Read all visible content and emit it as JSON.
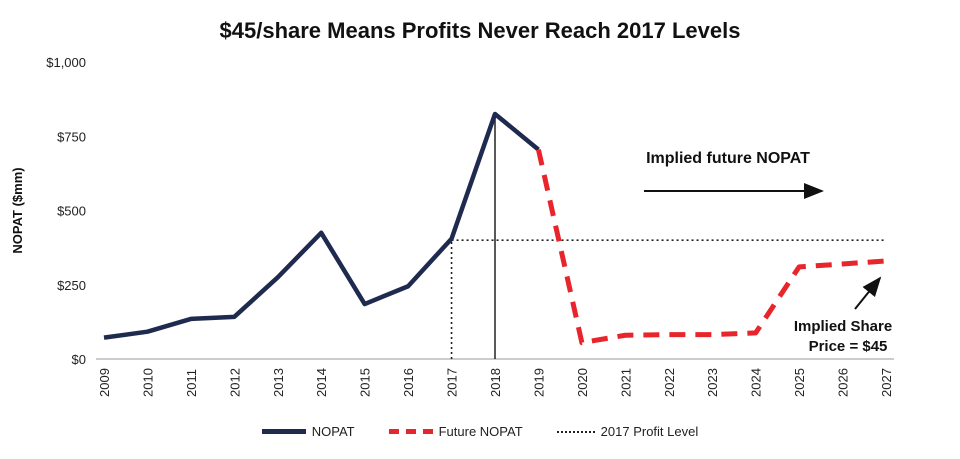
{
  "chart_data": {
    "type": "line",
    "title": "$45/share Means Profits Never Reach 2017 Levels",
    "ylabel": "NOPAT ($mm)",
    "xlabel": "",
    "ylim": [
      0,
      1000
    ],
    "y_ticks": [
      "$0",
      "$250",
      "$500",
      "$750",
      "$1,000"
    ],
    "y_tick_values": [
      0,
      250,
      500,
      750,
      1000
    ],
    "categories": [
      "2009",
      "2010",
      "2011",
      "2012",
      "2013",
      "2014",
      "2015",
      "2016",
      "2017",
      "2018",
      "2019",
      "2020",
      "2021",
      "2022",
      "2023",
      "2024",
      "2025",
      "2026",
      "2027"
    ],
    "series": [
      {
        "name": "NOPAT",
        "color": "#1f2a4f",
        "style": "solid",
        "x": [
          "2009",
          "2010",
          "2011",
          "2012",
          "2013",
          "2014",
          "2015",
          "2016",
          "2017",
          "2018",
          "2019"
        ],
        "values": [
          72,
          92,
          135,
          142,
          275,
          425,
          185,
          245,
          405,
          825,
          705
        ]
      },
      {
        "name": "Future NOPAT",
        "color": "#e8252b",
        "style": "dashed",
        "x": [
          "2019",
          "2020",
          "2021",
          "2022",
          "2023",
          "2024",
          "2025",
          "2026",
          "2027"
        ],
        "values": [
          705,
          55,
          80,
          82,
          82,
          88,
          310,
          320,
          330
        ]
      },
      {
        "name": "2017 Profit Level",
        "color": "#222222",
        "style": "dotted",
        "value": 400,
        "from": "2017"
      }
    ],
    "vertical_markers": [
      {
        "x": "2017",
        "to_value": 400,
        "style": "dotted"
      },
      {
        "x": "2018",
        "to_value": 825,
        "style": "solid"
      }
    ],
    "annotations": {
      "implied_future": "Implied future NOPAT",
      "share_line1": "Implied Share",
      "share_line2": "Price = $45"
    },
    "legend_position": "bottom",
    "grid": false
  },
  "legend": {
    "nopat": "NOPAT",
    "future": "Future NOPAT",
    "profit2017": "2017 Profit Level"
  }
}
